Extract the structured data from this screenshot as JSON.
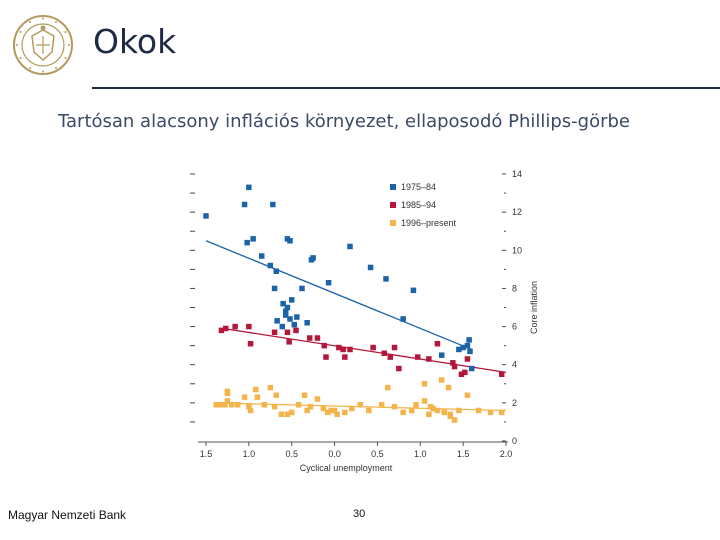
{
  "header": {
    "title": "Okok",
    "subtitle": "Tartósan alacsony inflációs környezet, ellaposodó Phillips-görbe"
  },
  "footer": {
    "org": "Magyar Nemzeti Bank",
    "page_number": "30"
  },
  "colors": {
    "navy": "#1f2a44",
    "s1": "#1c63a8",
    "s2": "#b5173a",
    "s3": "#f4b44c"
  },
  "chart_data": {
    "type": "scatter",
    "title": "",
    "xlabel": "Cyclical unemployment",
    "ylabel": "Core inflation",
    "x_ticks": [
      "1.5",
      "1.0",
      "0.5",
      "0.0",
      "0.5",
      "1.0",
      "1.5",
      "2.0"
    ],
    "x_tick_values": [
      -1.5,
      -1.0,
      -0.5,
      0.0,
      0.5,
      1.0,
      1.5,
      2.0
    ],
    "y_ticks": [
      "0",
      "2",
      "4",
      "6",
      "8",
      "10",
      "12",
      "14"
    ],
    "y_tick_values": [
      0,
      2,
      4,
      6,
      8,
      10,
      12,
      14
    ],
    "xlim": [
      -1.5,
      2.0
    ],
    "ylim": [
      0,
      14
    ],
    "legend_position": "top-right",
    "series": [
      {
        "name": "1975–84",
        "color": "#1c63a8",
        "points": [
          [
            -1.5,
            11.8
          ],
          [
            -1.0,
            13.3
          ],
          [
            -1.05,
            12.4
          ],
          [
            -0.72,
            12.4
          ],
          [
            -0.95,
            10.6
          ],
          [
            -1.02,
            10.4
          ],
          [
            -0.85,
            9.7
          ],
          [
            -0.55,
            10.6
          ],
          [
            -0.52,
            10.5
          ],
          [
            -0.75,
            9.2
          ],
          [
            -0.68,
            8.9
          ],
          [
            -0.25,
            9.6
          ],
          [
            -0.27,
            9.5
          ],
          [
            -0.7,
            8.0
          ],
          [
            0.18,
            10.2
          ],
          [
            0.42,
            9.1
          ],
          [
            0.6,
            8.5
          ],
          [
            0.92,
            7.9
          ],
          [
            -0.38,
            8.0
          ],
          [
            -0.5,
            7.4
          ],
          [
            -0.55,
            7.0
          ],
          [
            -0.57,
            6.6
          ],
          [
            -0.44,
            6.5
          ],
          [
            -0.52,
            6.4
          ],
          [
            -0.32,
            6.2
          ],
          [
            -0.67,
            6.3
          ],
          [
            -0.61,
            6.0
          ],
          [
            -0.07,
            8.3
          ],
          [
            0.8,
            6.4
          ],
          [
            1.45,
            4.8
          ],
          [
            1.5,
            4.9
          ],
          [
            1.55,
            5.0
          ],
          [
            1.57,
            5.3
          ],
          [
            1.58,
            4.7
          ],
          [
            1.25,
            4.5
          ],
          [
            1.6,
            3.8
          ],
          [
            -0.47,
            6.1
          ],
          [
            -0.57,
            6.8
          ],
          [
            -0.6,
            7.2
          ]
        ]
      },
      {
        "name": "1985–94",
        "color": "#b5173a",
        "points": [
          [
            -1.32,
            5.8
          ],
          [
            -1.27,
            5.9
          ],
          [
            -1.16,
            6.0
          ],
          [
            -1.0,
            6.0
          ],
          [
            -0.98,
            5.1
          ],
          [
            -0.7,
            5.7
          ],
          [
            -0.55,
            5.7
          ],
          [
            -0.53,
            5.2
          ],
          [
            -0.45,
            5.8
          ],
          [
            -0.29,
            5.4
          ],
          [
            -0.12,
            5.0
          ],
          [
            -0.1,
            4.4
          ],
          [
            0.05,
            4.9
          ],
          [
            0.1,
            4.8
          ],
          [
            0.18,
            4.8
          ],
          [
            0.45,
            4.9
          ],
          [
            0.58,
            4.6
          ],
          [
            0.65,
            4.4
          ],
          [
            0.7,
            4.9
          ],
          [
            0.75,
            3.8
          ],
          [
            0.97,
            4.4
          ],
          [
            1.1,
            4.3
          ],
          [
            1.2,
            5.1
          ],
          [
            1.38,
            4.1
          ],
          [
            1.55,
            4.3
          ],
          [
            1.4,
            3.9
          ],
          [
            1.52,
            3.6
          ],
          [
            1.95,
            3.5
          ],
          [
            1.48,
            3.5
          ],
          [
            -0.2,
            5.4
          ],
          [
            0.12,
            4.4
          ]
        ]
      },
      {
        "name": "1996–present",
        "color": "#f4b44c",
        "points": [
          [
            -1.38,
            1.9
          ],
          [
            -1.32,
            1.9
          ],
          [
            -1.28,
            1.9
          ],
          [
            -1.25,
            2.5
          ],
          [
            -1.25,
            2.1
          ],
          [
            -1.2,
            1.9
          ],
          [
            -1.13,
            1.9
          ],
          [
            -1.05,
            2.3
          ],
          [
            -1.0,
            1.8
          ],
          [
            -0.98,
            1.6
          ],
          [
            -0.92,
            2.7
          ],
          [
            -0.9,
            2.3
          ],
          [
            -0.82,
            1.9
          ],
          [
            -0.75,
            2.8
          ],
          [
            -0.7,
            1.8
          ],
          [
            -0.68,
            2.4
          ],
          [
            -0.62,
            1.4
          ],
          [
            -0.55,
            1.4
          ],
          [
            -0.5,
            1.5
          ],
          [
            -0.42,
            1.9
          ],
          [
            -0.35,
            2.4
          ],
          [
            -0.32,
            1.6
          ],
          [
            -0.28,
            1.8
          ],
          [
            -0.2,
            2.2
          ],
          [
            -0.13,
            1.7
          ],
          [
            -0.08,
            1.5
          ],
          [
            -0.04,
            1.6
          ],
          [
            0.0,
            1.6
          ],
          [
            0.03,
            1.4
          ],
          [
            0.12,
            1.5
          ],
          [
            0.2,
            1.7
          ],
          [
            0.3,
            1.9
          ],
          [
            0.4,
            1.6
          ],
          [
            0.55,
            1.9
          ],
          [
            0.7,
            1.8
          ],
          [
            0.8,
            1.5
          ],
          [
            0.9,
            1.6
          ],
          [
            0.95,
            1.9
          ],
          [
            1.05,
            2.1
          ],
          [
            1.1,
            1.4
          ],
          [
            1.15,
            1.7
          ],
          [
            1.2,
            1.6
          ],
          [
            1.28,
            1.5
          ],
          [
            1.35,
            1.3
          ],
          [
            1.4,
            1.1
          ],
          [
            1.45,
            1.6
          ],
          [
            1.55,
            2.4
          ],
          [
            1.68,
            1.6
          ],
          [
            1.82,
            1.5
          ],
          [
            1.95,
            1.5
          ],
          [
            0.62,
            2.8
          ],
          [
            1.05,
            3.0
          ],
          [
            1.25,
            3.2
          ],
          [
            1.33,
            2.8
          ],
          [
            1.35,
            1.4
          ],
          [
            -1.25,
            2.6
          ],
          [
            1.12,
            1.8
          ]
        ]
      }
    ],
    "trend_lines": [
      {
        "series": "1975–84",
        "x": [
          -1.5,
          1.6
        ],
        "y": [
          10.5,
          4.8
        ]
      },
      {
        "series": "1985–94",
        "x": [
          -1.3,
          2.0
        ],
        "y": [
          5.9,
          3.6
        ]
      },
      {
        "series": "1996–present",
        "x": [
          -1.4,
          2.0
        ],
        "y": [
          2.0,
          1.6
        ]
      }
    ]
  }
}
